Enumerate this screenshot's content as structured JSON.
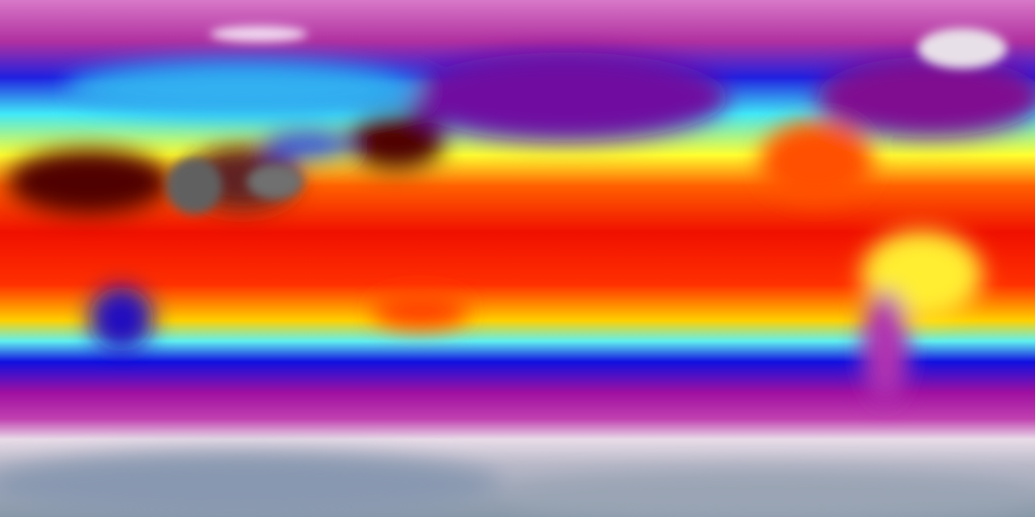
{
  "map": {
    "projection": "equirectangular",
    "colormap": [
      "#d070c0",
      "#901090",
      "#1010e0",
      "#40f0f0",
      "#ffff20",
      "#ff2000",
      "#300000",
      "#e8d8e8",
      "#8a98a8"
    ],
    "bands": [
      {
        "offset": 0.0,
        "color": "#d878c8"
      },
      {
        "offset": 0.08,
        "color": "#b030a0"
      },
      {
        "offset": 0.15,
        "color": "#2020e0"
      },
      {
        "offset": 0.22,
        "color": "#40e8f8"
      },
      {
        "offset": 0.3,
        "color": "#ffff30"
      },
      {
        "offset": 0.36,
        "color": "#ff6000"
      },
      {
        "offset": 0.45,
        "color": "#f01000"
      },
      {
        "offset": 0.55,
        "color": "#ff3000"
      },
      {
        "offset": 0.62,
        "color": "#ffd000"
      },
      {
        "offset": 0.66,
        "color": "#60f0f0"
      },
      {
        "offset": 0.7,
        "color": "#1010e0"
      },
      {
        "offset": 0.76,
        "color": "#a010a0"
      },
      {
        "offset": 0.81,
        "color": "#c040b0"
      },
      {
        "offset": 0.85,
        "color": "#e8dce8"
      },
      {
        "offset": 0.9,
        "color": "#b8b8c8"
      },
      {
        "offset": 1.0,
        "color": "#8898a8"
      }
    ]
  }
}
